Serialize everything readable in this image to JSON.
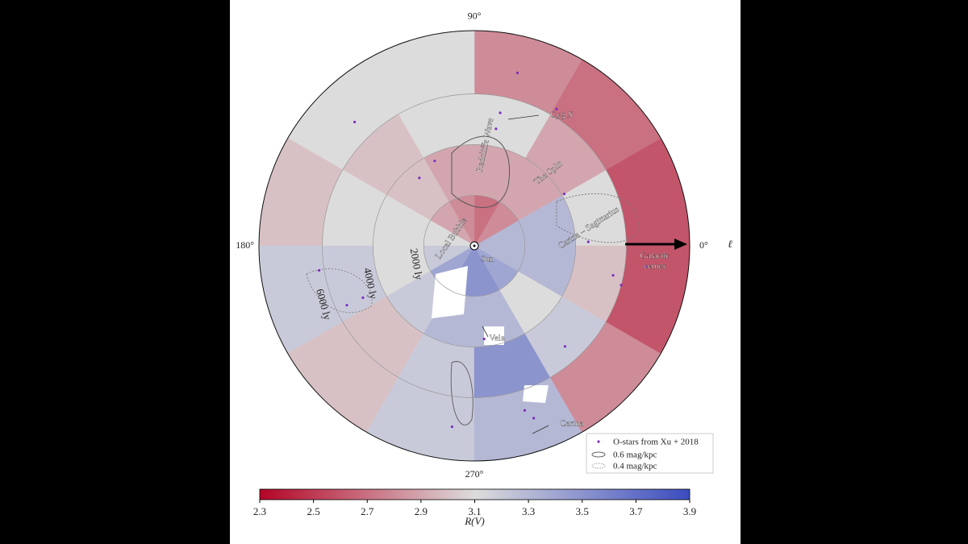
{
  "chart_data": {
    "type": "polar-heatmap",
    "rlim": [
      0,
      8500
    ],
    "rings": [
      {
        "value": 2000,
        "label": "2000 ly"
      },
      {
        "value": 4000,
        "label": "4000 ly"
      },
      {
        "value": 6000,
        "label": "6000 ly"
      }
    ],
    "lticks": [
      {
        "value": 0,
        "label": "0°"
      },
      {
        "value": 90,
        "label": "90°"
      },
      {
        "value": 180,
        "label": "180°"
      },
      {
        "value": 270,
        "label": "270°"
      }
    ],
    "l_axis_label": "ℓ",
    "l_bins": [
      0,
      30,
      60,
      90,
      120,
      150,
      180,
      210,
      240,
      270,
      300,
      330,
      360
    ],
    "r_bins": [
      0,
      2000,
      4000,
      6000,
      8500
    ],
    "values": [
      [
        3.3,
        2.8,
        2.7,
        2.8,
        2.9,
        3.1,
        3.2,
        3.4,
        3.5,
        3.5,
        3.4,
        3.3
      ],
      [
        3.3,
        2.9,
        2.9,
        2.9,
        3.0,
        3.1,
        3.1,
        3.2,
        3.3,
        3.3,
        3.1,
        3.3
      ],
      [
        3.1,
        2.9,
        3.1,
        3.1,
        3.0,
        3.1,
        3.2,
        3.0,
        3.2,
        3.5,
        3.2,
        3.0
      ],
      [
        2.6,
        2.7,
        2.8,
        3.1,
        3.1,
        3.0,
        3.2,
        3.0,
        3.2,
        3.3,
        2.8,
        2.6
      ]
    ],
    "cmap": [
      "#b40426",
      "#dddcdc",
      "#3b4cc0"
    ],
    "clim": [
      2.3,
      3.9
    ],
    "cticks": [
      2.3,
      2.5,
      2.7,
      2.9,
      3.1,
      3.3,
      3.5,
      3.7,
      3.9
    ],
    "colorbar_label": "R(V)",
    "series": [
      {
        "name": "O-stars from Xu + 2018",
        "color": "#7b2fbe",
        "x": [
          79,
          79.5,
          76,
          348,
          345,
          353,
          2,
          30,
          205,
          205,
          289,
          287,
          276,
          129,
          115,
          134,
          189,
          312,
          263,
          59
        ],
        "values": [
          5350,
          4700,
          7040,
          5600,
          6000,
          6800,
          4500,
          4100,
          4850,
          5550,
          7200,
          6800,
          3700,
          3450,
          3700,
          6800,
          6200,
          5350,
          7200,
          6300
        ]
      }
    ],
    "contours": [
      {
        "name": "0.6 mag/kpc",
        "style": "solid"
      },
      {
        "name": "0.4 mag/kpc",
        "style": "dotted"
      }
    ],
    "annotations": [
      "Cyg X",
      "Radcliffe Wave",
      "The Split",
      "Carina – Sagittarius",
      "Local Bubble",
      "Sun",
      "Vela",
      "Carina"
    ],
    "galactic_center": [
      "Galactic",
      "center"
    ]
  }
}
